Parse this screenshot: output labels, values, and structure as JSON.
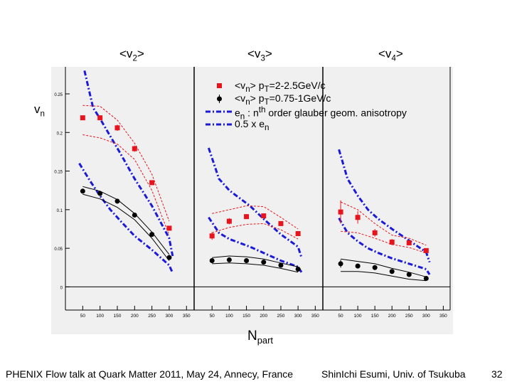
{
  "chart_data": {
    "type": "scatter",
    "title": "",
    "xlabel": "N_part",
    "ylabel": "v_n",
    "xlim": [
      0,
      370
    ],
    "ylim": [
      -0.03,
      0.285
    ],
    "x_ticks": [
      "50",
      "100",
      "150",
      "200",
      "250",
      "300",
      "350"
    ],
    "x_tick_values": [
      50,
      100,
      150,
      200,
      250,
      300,
      350
    ],
    "y_ticks": [
      "0.25",
      "0.2",
      "0.15",
      "0.1",
      "0.05",
      "0"
    ],
    "y_tick_values": [
      0.25,
      0.2,
      0.15,
      0.1,
      0.05,
      0
    ],
    "panels": [
      {
        "name": "v2",
        "header": {
          "base": "<v",
          "sub": "2",
          "tail": ">"
        },
        "series": [
          {
            "name": "<vn> pT=2-2.5GeV/c",
            "marker": "red-square",
            "color": "#e8141d",
            "x": [
              50,
              100,
              150,
              200,
              250,
              300
            ],
            "y": [
              0.219,
              0.219,
              0.206,
              0.179,
              0.135,
              0.076
            ],
            "err": [
              0.003,
              0.003,
              0.004,
              0.004,
              0.003,
              0.003
            ]
          },
          {
            "name": "<vn> pT=0.75-1GeV/c",
            "marker": "black-circle",
            "color": "#000000",
            "x": [
              50,
              100,
              150,
              200,
              250,
              300
            ],
            "y": [
              0.124,
              0.121,
              0.111,
              0.093,
              0.068,
              0.038
            ],
            "err": [
              0.002,
              0.002,
              0.002,
              0.002,
              0.002,
              0.002
            ]
          }
        ],
        "bands": [
          {
            "color": "#e8141d",
            "style": "dash",
            "upper": [
              [
                50,
                0.235
              ],
              [
                100,
                0.234
              ],
              [
                150,
                0.216
              ],
              [
                200,
                0.186
              ],
              [
                250,
                0.146
              ],
              [
                300,
                0.085
              ]
            ],
            "lower": [
              [
                50,
                0.197
              ],
              [
                100,
                0.193
              ],
              [
                150,
                0.185
              ],
              [
                200,
                0.165
              ],
              [
                250,
                0.125
              ],
              [
                300,
                0.067
              ]
            ]
          },
          {
            "color": "#000000",
            "style": "solid",
            "upper": [
              [
                50,
                0.13
              ],
              [
                100,
                0.124
              ],
              [
                150,
                0.113
              ],
              [
                200,
                0.095
              ],
              [
                250,
                0.071
              ],
              [
                300,
                0.042
              ]
            ],
            "lower": [
              [
                50,
                0.12
              ],
              [
                100,
                0.114
              ],
              [
                150,
                0.103
              ],
              [
                200,
                0.087
              ],
              [
                250,
                0.063
              ],
              [
                300,
                0.034
              ]
            ]
          }
        ],
        "theory": [
          {
            "name": "en",
            "color": "#1a1ad8",
            "x": [
              55,
              80,
              100,
              130,
              160,
              200,
              250,
              300,
              310
            ],
            "y": [
              0.28,
              0.232,
              0.218,
              0.195,
              0.172,
              0.14,
              0.105,
              0.063,
              0.04
            ]
          },
          {
            "name": "0.5 x en",
            "color": "#1a1ad8",
            "x": [
              40,
              70,
              100,
              130,
              160,
              200,
              250,
              300,
              310
            ],
            "y": [
              0.16,
              0.138,
              0.118,
              0.1,
              0.085,
              0.066,
              0.048,
              0.028,
              0.018
            ]
          }
        ]
      },
      {
        "name": "v3",
        "header": {
          "base": "<v",
          "sub": "3",
          "tail": ">"
        },
        "series": [
          {
            "name": "<vn> pT=2-2.5GeV/c",
            "marker": "red-square",
            "color": "#e8141d",
            "x": [
              50,
              100,
              150,
              200,
              250,
              300
            ],
            "y": [
              0.066,
              0.085,
              0.091,
              0.092,
              0.082,
              0.069
            ],
            "err": [
              0.005,
              0.004,
              0.003,
              0.003,
              0.003,
              0.003
            ]
          },
          {
            "name": "<vn> pT=0.75-1GeV/c",
            "marker": "black-circle",
            "color": "#000000",
            "x": [
              50,
              100,
              150,
              200,
              250,
              300
            ],
            "y": [
              0.034,
              0.035,
              0.034,
              0.032,
              0.028,
              0.023
            ],
            "err": [
              0.002,
              0.002,
              0.002,
              0.002,
              0.002,
              0.002
            ]
          }
        ],
        "bands": [
          {
            "color": "#e8141d",
            "style": "dash",
            "upper": [
              [
                50,
                0.095
              ],
              [
                100,
                0.1
              ],
              [
                150,
                0.105
              ],
              [
                200,
                0.104
              ],
              [
                250,
                0.09
              ],
              [
                300,
                0.075
              ]
            ],
            "lower": [
              [
                50,
                0.07
              ],
              [
                100,
                0.077
              ],
              [
                150,
                0.081
              ],
              [
                200,
                0.082
              ],
              [
                250,
                0.074
              ],
              [
                300,
                0.062
              ]
            ]
          },
          {
            "color": "#000000",
            "style": "solid",
            "upper": [
              [
                50,
                0.038
              ],
              [
                100,
                0.04
              ],
              [
                150,
                0.039
              ],
              [
                200,
                0.036
              ],
              [
                250,
                0.031
              ],
              [
                300,
                0.026
              ]
            ],
            "lower": [
              [
                50,
                0.03
              ],
              [
                100,
                0.031
              ],
              [
                150,
                0.03
              ],
              [
                200,
                0.028
              ],
              [
                250,
                0.024
              ],
              [
                300,
                0.019
              ]
            ]
          }
        ],
        "theory": [
          {
            "name": "en",
            "color": "#1a1ad8",
            "x": [
              40,
              70,
              100,
              130,
              160,
              200,
              250,
              300,
              310
            ],
            "y": [
              0.18,
              0.14,
              0.125,
              0.115,
              0.105,
              0.088,
              0.068,
              0.052,
              0.038
            ]
          },
          {
            "name": "0.5 x en",
            "color": "#1a1ad8",
            "x": [
              40,
              70,
              100,
              130,
              160,
              200,
              250,
              300,
              310
            ],
            "y": [
              0.09,
              0.07,
              0.062,
              0.057,
              0.052,
              0.044,
              0.034,
              0.026,
              0.019
            ]
          }
        ]
      },
      {
        "name": "v4",
        "header": {
          "base": "<v",
          "sub": "4",
          "tail": ">"
        },
        "series": [
          {
            "name": "<vn> pT=2-2.5GeV/c",
            "marker": "red-square",
            "color": "#e8141d",
            "x": [
              50,
              100,
              150,
              200,
              250,
              300
            ],
            "y": [
              0.097,
              0.09,
              0.07,
              0.058,
              0.057,
              0.047
            ],
            "err": [
              0.015,
              0.008,
              0.005,
              0.004,
              0.003,
              0.003
            ]
          },
          {
            "name": "<vn> pT=0.75-1GeV/c",
            "marker": "black-circle",
            "color": "#000000",
            "x": [
              50,
              100,
              150,
              200,
              250,
              300
            ],
            "y": [
              0.03,
              0.027,
              0.025,
              0.02,
              0.016,
              0.011
            ],
            "err": [
              0.005,
              0.002,
              0.002,
              0.002,
              0.002,
              0.002
            ]
          }
        ],
        "bands": [
          {
            "color": "#e8141d",
            "style": "dash",
            "upper": [
              [
                50,
                0.11
              ],
              [
                100,
                0.1
              ],
              [
                150,
                0.082
              ],
              [
                200,
                0.067
              ],
              [
                250,
                0.063
              ],
              [
                300,
                0.054
              ]
            ],
            "lower": [
              [
                50,
                0.072
              ],
              [
                100,
                0.07
              ],
              [
                150,
                0.063
              ],
              [
                200,
                0.055
              ],
              [
                250,
                0.051
              ],
              [
                300,
                0.044
              ]
            ]
          },
          {
            "color": "#000000",
            "style": "solid",
            "upper": [
              [
                50,
                0.036
              ],
              [
                100,
                0.033
              ],
              [
                150,
                0.03
              ],
              [
                200,
                0.024
              ],
              [
                250,
                0.019
              ],
              [
                300,
                0.013
              ]
            ],
            "lower": [
              [
                50,
                0.02
              ],
              [
                100,
                0.02
              ],
              [
                150,
                0.018
              ],
              [
                200,
                0.014
              ],
              [
                250,
                0.01
              ],
              [
                300,
                0.008
              ]
            ]
          }
        ],
        "theory": [
          {
            "name": "en",
            "color": "#1a1ad8",
            "x": [
              45,
              70,
              100,
              130,
              160,
              200,
              250,
              300,
              310
            ],
            "y": [
              0.178,
              0.14,
              0.118,
              0.1,
              0.088,
              0.075,
              0.06,
              0.045,
              0.032
            ]
          },
          {
            "name": "0.5 x en",
            "color": "#1a1ad8",
            "x": [
              45,
              70,
              100,
              130,
              160,
              200,
              250,
              300,
              310
            ],
            "y": [
              0.089,
              0.07,
              0.059,
              0.05,
              0.044,
              0.037,
              0.03,
              0.023,
              0.016
            ]
          }
        ]
      }
    ],
    "legend": [
      {
        "marker": "red-square",
        "parts": [
          "<v",
          "n",
          "> p",
          "T",
          "=2-2.5GeV/c"
        ]
      },
      {
        "marker": "black-circle",
        "parts": [
          "<v",
          "n",
          "> p",
          "T",
          "=0.75-1GeV/c"
        ]
      },
      {
        "marker": "blue-dashdot",
        "parts": [
          "e",
          "n",
          " : n",
          "th",
          " order glauber geom. anisotropy"
        ]
      },
      {
        "marker": "blue-dashdot",
        "parts": [
          "0.5 x e",
          "n"
        ]
      }
    ]
  },
  "labels": {
    "vn": {
      "base": "v",
      "sub": "n"
    },
    "npart": {
      "base": "N",
      "sub": "part"
    }
  },
  "footer": {
    "left": "PHENIX Flow talk at Quark Matter 2011, May 24, Annecy, France",
    "center": "ShinIchi Esumi, Univ. of Tsukuba",
    "page": "32"
  },
  "colors": {
    "red": "#e8141d",
    "black": "#000000",
    "blue": "#1a1ad8",
    "frame_bg": "#f0f0f0"
  }
}
